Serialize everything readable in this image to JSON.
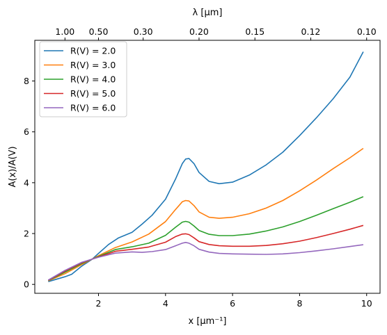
{
  "chart_data": {
    "type": "line",
    "xlabel": "x [μm⁻¹]",
    "ylabel": "A(x)/A(V)",
    "top_xlabel": "λ [μm]",
    "xlim": [
      0.1,
      10.4
    ],
    "ylim": [
      -0.35,
      9.6
    ],
    "x_ticks": [
      2,
      4,
      6,
      8,
      10
    ],
    "y_ticks": [
      0,
      2,
      4,
      6,
      8
    ],
    "top_ticks": [
      {
        "x": 1.0,
        "label": "1.00"
      },
      {
        "x": 2.0,
        "label": "0.50"
      },
      {
        "x": 3.333,
        "label": "0.30"
      },
      {
        "x": 5.0,
        "label": "0.20"
      },
      {
        "x": 6.667,
        "label": "0.15"
      },
      {
        "x": 8.333,
        "label": "0.12"
      },
      {
        "x": 10.0,
        "label": "0.10"
      }
    ],
    "legend_position": "upper left",
    "grid": false,
    "series": [
      {
        "name": "R(V) = 2.0",
        "color": "#1f77b4",
        "x": [
          0.5,
          1.0,
          1.2,
          1.5,
          1.8,
          2.0,
          2.3,
          2.6,
          3.0,
          3.3,
          3.6,
          4.0,
          4.3,
          4.5,
          4.6,
          4.7,
          4.85,
          5.0,
          5.3,
          5.6,
          6.0,
          6.5,
          7.0,
          7.5,
          8.0,
          8.5,
          9.0,
          9.5,
          9.9
        ],
        "y": [
          0.11,
          0.3,
          0.4,
          0.72,
          0.98,
          1.22,
          1.57,
          1.83,
          2.05,
          2.37,
          2.72,
          3.35,
          4.15,
          4.75,
          4.93,
          4.95,
          4.75,
          4.4,
          4.05,
          3.96,
          4.02,
          4.3,
          4.7,
          5.2,
          5.85,
          6.55,
          7.3,
          8.15,
          9.15
        ]
      },
      {
        "name": "R(V) = 3.0",
        "color": "#ff7f0e",
        "x": [
          0.5,
          1.0,
          1.5,
          2.0,
          2.5,
          3.0,
          3.5,
          4.0,
          4.3,
          4.5,
          4.6,
          4.7,
          4.85,
          5.0,
          5.3,
          5.6,
          6.0,
          6.5,
          7.0,
          7.5,
          8.0,
          8.5,
          9.0,
          9.5,
          9.9
        ],
        "y": [
          0.14,
          0.42,
          0.78,
          1.13,
          1.45,
          1.67,
          1.98,
          2.47,
          2.95,
          3.25,
          3.3,
          3.28,
          3.1,
          2.85,
          2.64,
          2.6,
          2.64,
          2.78,
          3.0,
          3.3,
          3.68,
          4.1,
          4.55,
          4.98,
          5.35
        ]
      },
      {
        "name": "R(V) = 4.0",
        "color": "#2ca02c",
        "x": [
          0.5,
          1.0,
          1.5,
          2.0,
          2.5,
          3.0,
          3.5,
          4.0,
          4.3,
          4.5,
          4.6,
          4.7,
          4.85,
          5.0,
          5.3,
          5.6,
          6.0,
          6.5,
          7.0,
          7.5,
          8.0,
          8.5,
          9.0,
          9.5,
          9.9
        ],
        "y": [
          0.15,
          0.48,
          0.82,
          1.1,
          1.37,
          1.48,
          1.62,
          1.93,
          2.25,
          2.45,
          2.48,
          2.45,
          2.3,
          2.12,
          1.97,
          1.92,
          1.92,
          1.98,
          2.1,
          2.26,
          2.47,
          2.72,
          2.98,
          3.23,
          3.45
        ]
      },
      {
        "name": "R(V) = 5.0",
        "color": "#d62728",
        "x": [
          0.5,
          1.0,
          1.5,
          2.0,
          2.5,
          3.0,
          3.5,
          4.0,
          4.3,
          4.5,
          4.6,
          4.7,
          4.85,
          5.0,
          5.3,
          5.6,
          6.0,
          6.5,
          7.0,
          7.5,
          8.0,
          8.5,
          9.0,
          9.5,
          9.9
        ],
        "y": [
          0.16,
          0.52,
          0.85,
          1.08,
          1.3,
          1.38,
          1.47,
          1.66,
          1.88,
          1.98,
          1.99,
          1.96,
          1.83,
          1.68,
          1.57,
          1.52,
          1.5,
          1.5,
          1.53,
          1.6,
          1.7,
          1.84,
          2.0,
          2.17,
          2.32
        ]
      },
      {
        "name": "R(V) = 6.0",
        "color": "#9467bd",
        "x": [
          0.5,
          1.0,
          1.5,
          2.0,
          2.5,
          3.0,
          3.3,
          3.6,
          4.0,
          4.3,
          4.5,
          4.6,
          4.7,
          4.85,
          5.0,
          5.3,
          5.6,
          6.0,
          6.5,
          7.0,
          7.5,
          8.0,
          8.5,
          9.0,
          9.5,
          9.9
        ],
        "y": [
          0.17,
          0.55,
          0.87,
          1.07,
          1.23,
          1.28,
          1.26,
          1.29,
          1.37,
          1.52,
          1.62,
          1.65,
          1.62,
          1.52,
          1.38,
          1.27,
          1.22,
          1.2,
          1.19,
          1.18,
          1.2,
          1.25,
          1.32,
          1.4,
          1.49,
          1.56
        ]
      }
    ]
  }
}
